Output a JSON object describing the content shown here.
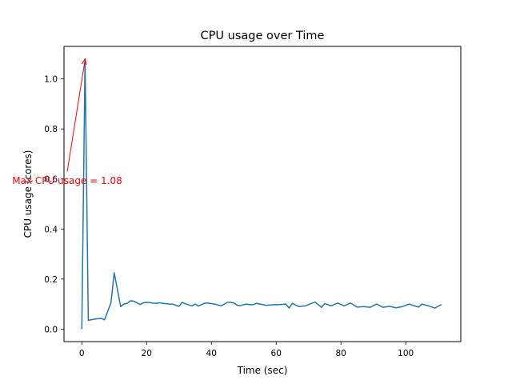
{
  "chart_data": {
    "type": "line",
    "title": "CPU usage over Time",
    "xlabel": "Time (sec)",
    "ylabel": "CPU usage (cores)",
    "xlim": [
      -5.5,
      117
    ],
    "ylim": [
      -0.05,
      1.13
    ],
    "x_ticks": [
      0,
      20,
      40,
      60,
      80,
      100
    ],
    "y_ticks": [
      0.0,
      0.2,
      0.4,
      0.6,
      0.8,
      1.0
    ],
    "x_tick_labels": [
      "0",
      "20",
      "40",
      "60",
      "80",
      "100"
    ],
    "y_tick_labels": [
      "0.0",
      "0.2",
      "0.4",
      "0.6",
      "0.8",
      "1.0"
    ],
    "grid": false,
    "legend": "none",
    "series": [
      {
        "color": "#1f77b4",
        "x": [
          0,
          1,
          2,
          4,
          6,
          7,
          9,
          10,
          12,
          13,
          14,
          15,
          16,
          18,
          19,
          20,
          21,
          22,
          23,
          24,
          25,
          27,
          28,
          30,
          31,
          32,
          33,
          34,
          35,
          36,
          38,
          39,
          40,
          41,
          43,
          45,
          46,
          47,
          48,
          49,
          50,
          51,
          52,
          53,
          54,
          55,
          57,
          59,
          61,
          63,
          64,
          65,
          67,
          69,
          72,
          74,
          75,
          77,
          79,
          81,
          83,
          85,
          87,
          89,
          91,
          93,
          95,
          97,
          99,
          101,
          104,
          105,
          107,
          109,
          111
        ],
        "y": [
          0.0,
          1.08,
          0.035,
          0.04,
          0.043,
          0.037,
          0.105,
          0.225,
          0.09,
          0.1,
          0.103,
          0.113,
          0.112,
          0.098,
          0.105,
          0.107,
          0.106,
          0.104,
          0.103,
          0.105,
          0.103,
          0.1,
          0.1,
          0.091,
          0.107,
          0.101,
          0.097,
          0.093,
          0.1,
          0.092,
          0.104,
          0.104,
          0.102,
          0.1,
          0.093,
          0.107,
          0.107,
          0.104,
          0.095,
          0.094,
          0.098,
          0.1,
          0.097,
          0.098,
          0.103,
          0.1,
          0.095,
          0.097,
          0.098,
          0.1,
          0.084,
          0.103,
          0.09,
          0.093,
          0.108,
          0.087,
          0.102,
          0.093,
          0.104,
          0.093,
          0.104,
          0.088,
          0.09,
          0.087,
          0.1,
          0.087,
          0.091,
          0.085,
          0.09,
          0.1,
          0.088,
          0.1,
          0.093,
          0.084,
          0.098
        ]
      }
    ],
    "annotation": {
      "text": "Max CPU usage = 1.08",
      "point": [
        1,
        1.08
      ],
      "text_pos": [
        -4.5,
        0.63
      ],
      "color": "#ff0000"
    }
  }
}
